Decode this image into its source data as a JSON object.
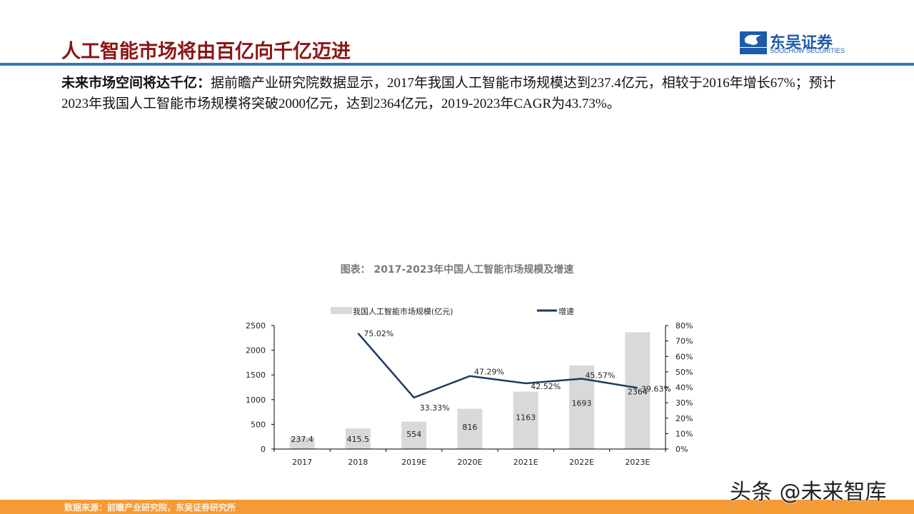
{
  "header": {
    "title": "人工智能市场将由百亿向千亿迈进",
    "logo_cn": "东吴证券",
    "logo_en": "SOOCHOW SECURITIES",
    "logo_mark": "SCS",
    "accent_color": "#2D7CC1",
    "title_color": "#8B1515"
  },
  "body": {
    "lead": "未来市场空间将达千亿：",
    "text": "据前瞻产业研究院数据显示，2017年我国人工智能市场规模达到237.4亿元，相较于2016年增长67%；预计2023年我国人工智能市场规模将突破2000亿元，达到2364亿元，2019-2023年CAGR为43.73%。"
  },
  "chart_data": {
    "type": "bar+line",
    "title": "图表： 2017-2023年中国人工智能市场规模及增速",
    "categories": [
      "2017",
      "2018",
      "2019E",
      "2020E",
      "2021E",
      "2022E",
      "2023E"
    ],
    "series": [
      {
        "name": "我国人工智能市场规模(亿元)",
        "type": "bar",
        "axis": "left",
        "color": "#D9D9D9",
        "values": [
          237.4,
          415.5,
          554,
          816,
          1163,
          1693,
          2364
        ],
        "labels": [
          "237.4",
          "415.5",
          "554",
          "816",
          "1163",
          "1693",
          "2364"
        ]
      },
      {
        "name": "增速",
        "type": "line",
        "axis": "right",
        "color": "#1F3A5F",
        "values": [
          null,
          75.02,
          33.33,
          47.29,
          42.52,
          45.57,
          39.63
        ],
        "labels": [
          "",
          "75.02%",
          "33.33%",
          "47.29%",
          "42.52%",
          "45.57%",
          "39.63%"
        ]
      }
    ],
    "y_left": {
      "range": [
        0,
        2500
      ],
      "ticks": [
        "0",
        "500",
        "1000",
        "1500",
        "2000",
        "2500"
      ]
    },
    "y_right": {
      "range": [
        0,
        80
      ],
      "ticks": [
        "0%",
        "10%",
        "20%",
        "30%",
        "40%",
        "50%",
        "60%",
        "70%",
        "80%"
      ]
    },
    "legend": "top",
    "grid": false
  },
  "footer": {
    "source": "数据来源：前瞻产业研究院，东吴证券研究所",
    "watermark": "头条 @未来智库"
  }
}
